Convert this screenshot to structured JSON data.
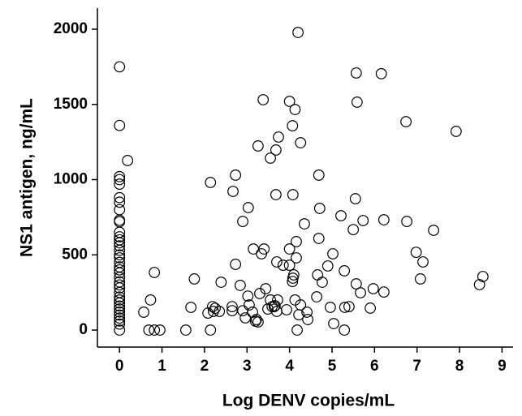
{
  "chart_data": {
    "type": "scatter",
    "xlabel": "Log DENV copies/mL",
    "ylabel": "NS1 antigen, ng/mL",
    "xlim": [
      -0.52,
      9.26
    ],
    "ylim": [
      -113,
      2140
    ],
    "xticks": [
      0,
      1,
      2,
      3,
      4,
      5,
      6,
      7,
      8,
      9
    ],
    "yticks": [
      0,
      500,
      1000,
      1500,
      2000
    ],
    "color": "#000000",
    "x": [
      0,
      0,
      0,
      0,
      0,
      0,
      0,
      0,
      0,
      0,
      0,
      0,
      0,
      0,
      0,
      0,
      0,
      0,
      0,
      0,
      0,
      0,
      0,
      0,
      0,
      0,
      0,
      0,
      0,
      0,
      0,
      0,
      0,
      0,
      0,
      0,
      0,
      0,
      0.19,
      0.57,
      0.73,
      0.82,
      0.69,
      0.82,
      0.95,
      1.56,
      1.68,
      1.76,
      2.14,
      2.14,
      2.08,
      2.19,
      2.25,
      2.21,
      2.35,
      2.39,
      2.65,
      2.65,
      2.73,
      2.73,
      2.67,
      2.84,
      2.9,
      3.03,
      2.9,
      2.96,
      3.02,
      3.05,
      3.13,
      3.22,
      3.2,
      3.26,
      3.15,
      3.26,
      3.38,
      3.34,
      3.4,
      3.3,
      3.44,
      3.49,
      3.59,
      3.55,
      3.55,
      3.68,
      3.7,
      3.74,
      3.68,
      3.66,
      3.7,
      3.72,
      3.64,
      3.85,
      3.93,
      4.0,
      4.0,
      4.07,
      4.08,
      4.1,
      4.08,
      4.0,
      4.07,
      4.13,
      4.2,
      4.26,
      4.16,
      4.16,
      4.13,
      4.22,
      4.18,
      4.26,
      4.35,
      4.41,
      4.43,
      4.64,
      4.69,
      4.69,
      4.71,
      4.66,
      4.77,
      4.9,
      5.02,
      4.96,
      5.04,
      5.21,
      5.29,
      5.29,
      5.4,
      5.3,
      5.55,
      5.5,
      5.73,
      5.57,
      5.59,
      5.57,
      5.67,
      5.9,
      5.97,
      6.22,
      6.22,
      6.16,
      6.76,
      6.74,
      6.98,
      7.14,
      7.08,
      7.39,
      7.92,
      8.47,
      8.55
    ],
    "values": [
      1750,
      1360,
      1020,
      1000,
      970,
      880,
      850,
      800,
      730,
      720,
      650,
      620,
      600,
      580,
      560,
      530,
      500,
      480,
      450,
      420,
      400,
      380,
      350,
      320,
      300,
      280,
      250,
      220,
      200,
      180,
      160,
      140,
      120,
      100,
      80,
      60,
      40,
      0,
      1127,
      119,
      200,
      383,
      0,
      0,
      0,
      0,
      151,
      340,
      0,
      981,
      113,
      156,
      145,
      124,
      124,
      318,
      156,
      129,
      437,
      1030,
      922,
      297,
      722,
      814,
      129,
      81,
      226,
      167,
      119,
      70,
      59,
      54,
      539,
      1224,
      1531,
      507,
      539,
      243,
      275,
      140,
      156,
      200,
      1143,
      1197,
      453,
      1283,
      900,
      162,
      124,
      200,
      156,
      431,
      135,
      431,
      539,
      323,
      900,
      367,
      345,
      1520,
      1358,
      1466,
      1978,
      1245,
      588,
      480,
      200,
      102,
      0,
      167,
      706,
      119,
      70,
      221,
      1030,
      609,
      809,
      367,
      318,
      426,
      507,
      151,
      43,
      760,
      394,
      0,
      156,
      151,
      873,
      668,
      728,
      1709,
      1515,
      307,
      248,
      146,
      275,
      253,
      733,
      1704,
      722,
      1385,
      517,
      453,
      340,
      663,
      1321,
      302,
      356
    ]
  }
}
